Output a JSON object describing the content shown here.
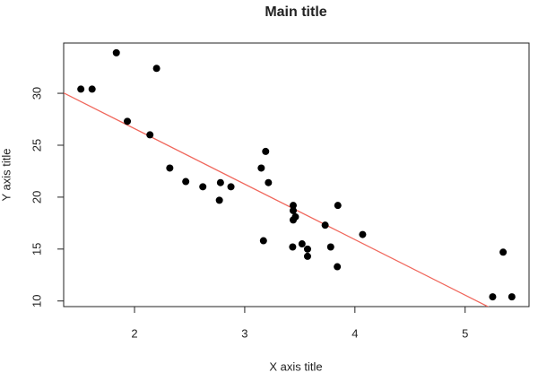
{
  "chart_data": {
    "type": "scatter",
    "title": "Main title",
    "x_label": "X axis title",
    "y_label": "Y axis title",
    "x": [
      2.62,
      2.875,
      2.32,
      3.215,
      3.44,
      3.46,
      3.57,
      3.19,
      3.15,
      3.44,
      3.44,
      4.07,
      3.73,
      3.78,
      5.25,
      5.424,
      5.345,
      2.2,
      1.615,
      1.835,
      2.465,
      3.52,
      3.435,
      3.84,
      3.845,
      1.935,
      2.14,
      1.513,
      3.17,
      2.77,
      3.57,
      2.78
    ],
    "values": [
      21.0,
      21.0,
      22.8,
      21.4,
      18.7,
      18.1,
      14.3,
      24.4,
      22.8,
      19.2,
      17.8,
      16.4,
      17.3,
      15.2,
      10.4,
      10.4,
      14.7,
      32.4,
      30.4,
      33.9,
      21.5,
      15.5,
      15.2,
      13.3,
      19.2,
      27.3,
      26.0,
      30.4,
      15.8,
      19.7,
      15.0,
      21.4
    ],
    "color": "#000000",
    "trend_line": {
      "intercept": 37.285,
      "slope": -5.344,
      "color": "#f0675c"
    },
    "xlim": [
      1.357,
      5.58
    ],
    "ylim": [
      9.46,
      34.84
    ],
    "xticks": [
      2,
      3,
      4,
      5
    ],
    "yticks": [
      10,
      15,
      20,
      25,
      30
    ]
  }
}
